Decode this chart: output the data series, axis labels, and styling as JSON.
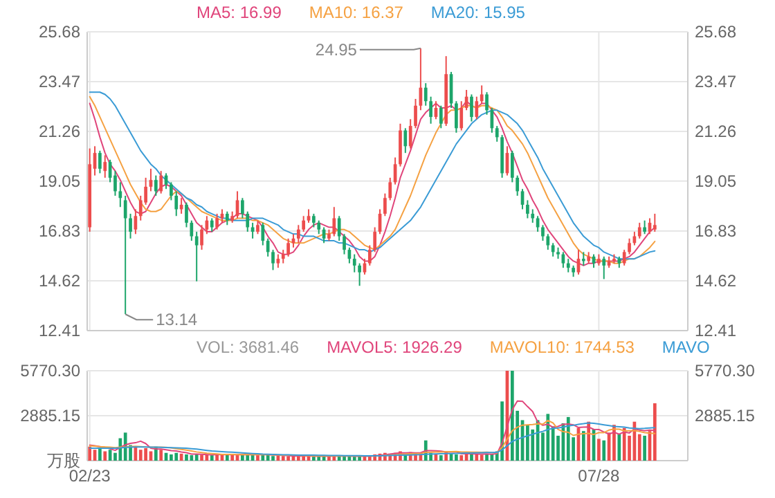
{
  "chart_data": [
    {
      "type": "candlestick",
      "categories": [
        null,
        null,
        null,
        null,
        null,
        null,
        null,
        null,
        null,
        null,
        null,
        null,
        null,
        null,
        null,
        null,
        null,
        null,
        null,
        null,
        null,
        null,
        null,
        null,
        null,
        null,
        null,
        null,
        null,
        null,
        null,
        null,
        null,
        null,
        null,
        null,
        null,
        null,
        null,
        null,
        null,
        null,
        null,
        null,
        null,
        null,
        null,
        null,
        null,
        null,
        null,
        null,
        null,
        null,
        null,
        null,
        null,
        null,
        null,
        null,
        null,
        null,
        null,
        null,
        null,
        null,
        null,
        null,
        null,
        null,
        null,
        null,
        null,
        null,
        null,
        null,
        null,
        null,
        null,
        null,
        null,
        null,
        null,
        null,
        null,
        null,
        null,
        null,
        null,
        null,
        null,
        null,
        null,
        null,
        null,
        null,
        null,
        null,
        null,
        null,
        null,
        null,
        null,
        null,
        null,
        null,
        null,
        null,
        null,
        null,
        null,
        null
      ],
      "ohlc": [
        [
          17.0,
          20.5,
          16.8,
          19.8
        ],
        [
          19.6,
          20.6,
          19.3,
          20.3
        ],
        [
          20.3,
          20.4,
          19.4,
          19.6
        ],
        [
          19.5,
          20.2,
          19.2,
          19.9
        ],
        [
          19.9,
          20.0,
          19.0,
          19.2
        ],
        [
          19.3,
          19.5,
          18.4,
          18.6
        ],
        [
          18.6,
          19.0,
          17.9,
          18.3
        ],
        [
          18.2,
          18.4,
          13.14,
          17.4
        ],
        [
          17.4,
          17.6,
          16.5,
          16.8
        ],
        [
          16.9,
          17.8,
          16.7,
          17.5
        ],
        [
          17.5,
          18.4,
          17.3,
          18.2
        ],
        [
          18.1,
          19.2,
          18.0,
          18.8
        ],
        [
          18.8,
          19.6,
          18.6,
          19.1
        ],
        [
          19.1,
          19.3,
          18.4,
          18.6
        ],
        [
          18.6,
          19.5,
          18.5,
          19.3
        ],
        [
          19.3,
          19.4,
          18.7,
          18.9
        ],
        [
          18.9,
          19.0,
          18.2,
          18.4
        ],
        [
          18.4,
          18.6,
          17.5,
          17.8
        ],
        [
          17.8,
          18.3,
          17.6,
          18.0
        ],
        [
          18.0,
          18.1,
          17.0,
          17.2
        ],
        [
          17.2,
          17.3,
          16.4,
          16.6
        ],
        [
          16.6,
          16.8,
          14.6,
          16.2
        ],
        [
          16.2,
          17.1,
          16.0,
          16.9
        ],
        [
          16.9,
          17.5,
          16.7,
          17.3
        ],
        [
          17.3,
          17.4,
          16.8,
          17.0
        ],
        [
          17.0,
          17.6,
          16.9,
          17.4
        ],
        [
          17.4,
          17.8,
          17.2,
          17.6
        ],
        [
          17.6,
          17.7,
          17.1,
          17.3
        ],
        [
          17.3,
          17.7,
          17.2,
          17.5
        ],
        [
          17.5,
          18.6,
          17.4,
          18.2
        ],
        [
          18.2,
          18.3,
          17.4,
          17.6
        ],
        [
          17.6,
          17.7,
          16.8,
          17.0
        ],
        [
          17.0,
          17.2,
          16.5,
          16.8
        ],
        [
          16.8,
          17.3,
          16.7,
          17.1
        ],
        [
          17.1,
          17.2,
          16.2,
          16.4
        ],
        [
          16.4,
          16.5,
          15.7,
          15.9
        ],
        [
          15.9,
          16.0,
          15.1,
          15.4
        ],
        [
          15.4,
          15.8,
          15.2,
          15.6
        ],
        [
          15.6,
          16.0,
          15.4,
          15.8
        ],
        [
          15.8,
          16.5,
          15.7,
          16.3
        ],
        [
          16.3,
          16.7,
          16.1,
          16.5
        ],
        [
          16.5,
          17.1,
          16.3,
          16.9
        ],
        [
          16.9,
          17.5,
          16.8,
          17.3
        ],
        [
          17.3,
          17.8,
          17.2,
          17.5
        ],
        [
          17.5,
          17.6,
          17.0,
          17.2
        ],
        [
          17.2,
          17.3,
          16.7,
          16.9
        ],
        [
          16.9,
          17.0,
          16.3,
          16.5
        ],
        [
          16.5,
          16.9,
          16.4,
          16.7
        ],
        [
          16.7,
          17.9,
          16.6,
          17.4
        ],
        [
          17.4,
          17.5,
          16.4,
          16.6
        ],
        [
          16.6,
          16.7,
          15.8,
          16.0
        ],
        [
          16.0,
          16.1,
          15.4,
          15.6
        ],
        [
          15.6,
          15.8,
          15.0,
          15.3
        ],
        [
          15.3,
          15.4,
          14.4,
          15.0
        ],
        [
          15.0,
          15.6,
          14.9,
          15.4
        ],
        [
          15.4,
          16.2,
          15.3,
          16.0
        ],
        [
          16.0,
          17.0,
          15.9,
          16.8
        ],
        [
          16.8,
          17.8,
          16.7,
          17.6
        ],
        [
          17.6,
          18.5,
          17.5,
          18.3
        ],
        [
          18.3,
          19.2,
          18.2,
          19.0
        ],
        [
          19.0,
          20.1,
          18.9,
          19.8
        ],
        [
          19.8,
          21.6,
          19.7,
          21.3
        ],
        [
          21.3,
          21.4,
          20.3,
          20.6
        ],
        [
          20.6,
          21.8,
          20.5,
          21.5
        ],
        [
          21.5,
          22.7,
          21.4,
          22.4
        ],
        [
          22.4,
          24.95,
          22.2,
          23.2
        ],
        [
          23.2,
          23.4,
          22.4,
          22.6
        ],
        [
          22.6,
          22.8,
          21.6,
          21.9
        ],
        [
          21.9,
          22.6,
          21.8,
          22.3
        ],
        [
          22.3,
          22.4,
          21.4,
          21.6
        ],
        [
          21.6,
          24.6,
          21.5,
          23.8
        ],
        [
          23.8,
          23.9,
          22.3,
          22.5
        ],
        [
          22.5,
          22.6,
          21.2,
          21.4
        ],
        [
          21.4,
          22.6,
          21.3,
          22.3
        ],
        [
          22.3,
          23.1,
          22.2,
          22.8
        ],
        [
          22.8,
          22.9,
          21.7,
          21.9
        ],
        [
          21.9,
          22.8,
          21.8,
          22.6
        ],
        [
          22.6,
          23.3,
          22.5,
          22.9
        ],
        [
          22.9,
          23.0,
          22.0,
          22.2
        ],
        [
          22.2,
          22.3,
          21.2,
          21.4
        ],
        [
          21.4,
          21.5,
          20.8,
          21.0
        ],
        [
          21.0,
          21.1,
          19.2,
          19.4
        ],
        [
          19.4,
          20.6,
          19.3,
          20.3
        ],
        [
          20.3,
          20.4,
          19.0,
          19.2
        ],
        [
          19.2,
          19.3,
          18.4,
          18.6
        ],
        [
          18.6,
          18.7,
          17.8,
          18.0
        ],
        [
          18.0,
          18.2,
          17.4,
          17.6
        ],
        [
          17.6,
          17.8,
          17.2,
          17.4
        ],
        [
          17.4,
          17.5,
          16.8,
          17.0
        ],
        [
          17.0,
          17.1,
          16.4,
          16.6
        ],
        [
          16.6,
          16.7,
          16.0,
          16.2
        ],
        [
          16.2,
          16.3,
          15.7,
          15.9
        ],
        [
          15.9,
          16.1,
          15.6,
          15.8
        ],
        [
          15.8,
          15.9,
          15.2,
          15.4
        ],
        [
          15.4,
          15.6,
          15.0,
          15.2
        ],
        [
          15.2,
          15.3,
          14.8,
          15.0
        ],
        [
          15.0,
          16.0,
          14.9,
          15.6
        ],
        [
          15.6,
          15.9,
          15.3,
          15.5
        ],
        [
          15.5,
          15.9,
          15.4,
          15.7
        ],
        [
          15.7,
          15.8,
          15.2,
          15.4
        ],
        [
          15.4,
          15.8,
          15.3,
          15.6
        ],
        [
          15.6,
          15.7,
          14.7,
          15.3
        ],
        [
          15.3,
          15.7,
          15.2,
          15.5
        ],
        [
          15.5,
          15.8,
          15.4,
          15.6
        ],
        [
          15.6,
          15.7,
          15.2,
          15.4
        ],
        [
          15.4,
          16.0,
          15.3,
          15.9
        ],
        [
          15.9,
          16.5,
          15.8,
          16.3
        ],
        [
          16.3,
          16.8,
          16.2,
          16.6
        ],
        [
          16.6,
          17.2,
          16.5,
          17.0
        ],
        [
          17.0,
          17.3,
          16.7,
          16.8
        ],
        [
          16.8,
          17.4,
          16.7,
          17.2
        ],
        [
          16.9,
          17.6,
          16.8,
          17.1
        ]
      ],
      "series": [
        {
          "name": "MA5: 16.99",
          "type": "line",
          "color": "#e0457b",
          "values": [
            22.5,
            21.8,
            21.0,
            20.3,
            19.8,
            19.5,
            19.1,
            18.6,
            18.1,
            17.7,
            17.6,
            17.7,
            18.1,
            18.5,
            18.8,
            18.9,
            18.8,
            18.6,
            18.4,
            18.0,
            17.6,
            17.2,
            17.0,
            16.8,
            16.8,
            17.0,
            17.2,
            17.3,
            17.4,
            17.6,
            17.6,
            17.5,
            17.4,
            17.3,
            17.0,
            16.6,
            16.3,
            15.9,
            15.8,
            15.8,
            15.9,
            16.2,
            16.6,
            16.9,
            17.1,
            17.2,
            17.1,
            17.0,
            17.0,
            16.8,
            16.6,
            16.4,
            16.1,
            15.7,
            15.5,
            15.5,
            15.7,
            16.2,
            16.8,
            17.5,
            18.3,
            19.2,
            19.8,
            20.4,
            21.1,
            21.8,
            22.1,
            22.3,
            22.5,
            22.3,
            22.3,
            22.4,
            22.2,
            22.3,
            22.6,
            22.4,
            22.3,
            22.5,
            22.5,
            22.2,
            21.9,
            21.4,
            20.8,
            20.3,
            19.7,
            19.1,
            18.7,
            18.2,
            17.8,
            17.3,
            16.9,
            16.6,
            16.3,
            16.0,
            15.7,
            15.5,
            15.4,
            15.3,
            15.4,
            15.4,
            15.5,
            15.5,
            15.5,
            15.5,
            15.5,
            15.6,
            15.7,
            15.9,
            16.2,
            16.5,
            16.8,
            16.99
          ]
        },
        {
          "name": "MA10: 16.37",
          "type": "line",
          "color": "#f5a142",
          "values": [
            22.8,
            22.4,
            21.9,
            21.4,
            20.9,
            20.4,
            19.9,
            19.4,
            18.9,
            18.5,
            18.1,
            17.8,
            17.7,
            17.7,
            17.8,
            18.1,
            18.4,
            18.6,
            18.5,
            18.3,
            18.1,
            17.9,
            17.7,
            17.6,
            17.5,
            17.4,
            17.3,
            17.3,
            17.3,
            17.4,
            17.4,
            17.4,
            17.3,
            17.3,
            17.2,
            17.1,
            16.9,
            16.7,
            16.5,
            16.4,
            16.3,
            16.3,
            16.3,
            16.4,
            16.5,
            16.6,
            16.7,
            16.7,
            16.8,
            16.9,
            16.9,
            16.8,
            16.6,
            16.4,
            16.2,
            16.1,
            16.0,
            16.2,
            16.4,
            16.6,
            16.9,
            17.4,
            17.9,
            18.4,
            19.0,
            19.6,
            20.2,
            20.7,
            21.2,
            21.6,
            22.0,
            22.2,
            22.2,
            22.3,
            22.4,
            22.4,
            22.3,
            22.4,
            22.4,
            22.3,
            22.2,
            21.9,
            21.5,
            21.3,
            21.0,
            20.7,
            20.3,
            19.8,
            19.3,
            18.8,
            18.3,
            17.9,
            17.5,
            17.1,
            16.7,
            16.3,
            16.0,
            15.8,
            15.7,
            15.6,
            15.5,
            15.5,
            15.5,
            15.4,
            15.4,
            15.5,
            15.6,
            15.6,
            15.7,
            15.9,
            16.1,
            16.37
          ]
        },
        {
          "name": "MA20: 15.95",
          "type": "line",
          "color": "#3a9bd5",
          "values": [
            23.0,
            23.0,
            23.0,
            22.9,
            22.7,
            22.4,
            22.0,
            21.6,
            21.2,
            20.8,
            20.4,
            20.1,
            19.8,
            19.6,
            19.3,
            19.1,
            18.9,
            18.7,
            18.5,
            18.3,
            18.2,
            18.0,
            17.9,
            17.7,
            17.6,
            17.5,
            17.4,
            17.4,
            17.3,
            17.3,
            17.3,
            17.3,
            17.4,
            17.4,
            17.4,
            17.3,
            17.2,
            17.1,
            16.9,
            16.8,
            16.7,
            16.7,
            16.6,
            16.6,
            16.6,
            16.5,
            16.4,
            16.4,
            16.4,
            16.3,
            16.3,
            16.2,
            16.1,
            16.0,
            16.0,
            15.9,
            16.0,
            16.1,
            16.3,
            16.5,
            16.7,
            16.9,
            17.1,
            17.3,
            17.6,
            17.9,
            18.3,
            18.7,
            19.1,
            19.5,
            19.9,
            20.3,
            20.7,
            21.0,
            21.3,
            21.6,
            21.8,
            22.0,
            22.1,
            22.2,
            22.2,
            22.1,
            22.0,
            21.8,
            21.6,
            21.3,
            20.9,
            20.5,
            20.1,
            19.6,
            19.2,
            18.8,
            18.4,
            18.0,
            17.6,
            17.2,
            16.9,
            16.6,
            16.4,
            16.2,
            16.1,
            15.9,
            15.8,
            15.7,
            15.6,
            15.6,
            15.6,
            15.6,
            15.7,
            15.8,
            15.9,
            15.95
          ]
        }
      ],
      "ylim": [
        12.41,
        25.68
      ],
      "yticks": [
        12.41,
        14.62,
        16.83,
        19.05,
        21.26,
        23.47,
        25.68
      ],
      "y2lim": [
        12.41,
        25.68
      ],
      "y2ticks": [
        12.41,
        14.62,
        16.83,
        19.05,
        21.26,
        23.47,
        25.68
      ],
      "grid": true,
      "legend": "top",
      "tick_labels": "y",
      "annotations": [
        "24.95",
        "13.14"
      ]
    },
    {
      "type": "bar",
      "categories": [
        "02/23",
        null,
        null,
        null,
        null,
        null,
        null,
        null,
        null,
        null,
        null,
        null,
        null,
        null,
        null,
        null,
        null,
        null,
        null,
        null,
        null,
        null,
        null,
        null,
        null,
        null,
        null,
        null,
        null,
        null,
        null,
        null,
        null,
        null,
        null,
        null,
        null,
        null,
        null,
        null,
        null,
        null,
        null,
        null,
        null,
        null,
        null,
        null,
        null,
        null,
        null,
        null,
        null,
        null,
        null,
        null,
        null,
        null,
        null,
        null,
        null,
        null,
        null,
        null,
        null,
        null,
        null,
        null,
        null,
        null,
        null,
        null,
        null,
        null,
        null,
        null,
        null,
        null,
        null,
        null,
        null,
        null,
        null,
        null,
        null,
        null,
        null,
        null,
        null,
        null,
        null,
        null,
        null,
        null,
        null,
        null,
        null,
        null,
        null,
        null,
        "07/28",
        null,
        null,
        null,
        null,
        null,
        null,
        null,
        null,
        null,
        null,
        null
      ],
      "values": [
        900,
        700,
        800,
        600,
        700,
        500,
        1440,
        1800,
        1000,
        900,
        700,
        800,
        600,
        900,
        700,
        500,
        400,
        500,
        450,
        400,
        350,
        400,
        380,
        420,
        350,
        400,
        380,
        420,
        400,
        360,
        400,
        380,
        420,
        350,
        400,
        380,
        300,
        320,
        300,
        280,
        300,
        280,
        320,
        300,
        260,
        280,
        300,
        280,
        320,
        300,
        280,
        300,
        260,
        300,
        280,
        300,
        400,
        450,
        500,
        450,
        500,
        600,
        400,
        550,
        450,
        500,
        1300,
        500,
        400,
        350,
        600,
        450,
        400,
        350,
        500,
        400,
        450,
        380,
        400,
        420,
        600,
        3800,
        5770.3,
        5770.3,
        3200,
        2600,
        2300,
        2000,
        2600,
        1800,
        3000,
        2200,
        1600,
        2400,
        2800,
        1500,
        2100,
        1900,
        2500,
        2000,
        1400,
        1300,
        1800,
        2300,
        1700,
        2100,
        1600,
        2500,
        1700,
        1600,
        1900,
        3681.46
      ],
      "colors": [
        "#ec4d4d",
        "#ec4d4d",
        "#1da56a",
        "#ec4d4d",
        "#1da56a",
        "#1da56a",
        "#1da56a",
        "#1da56a",
        "#1da56a",
        "#ec4d4d",
        "#ec4d4d",
        "#ec4d4d",
        "#ec4d4d",
        "#1da56a",
        "#ec4d4d",
        "#1da56a",
        "#1da56a",
        "#1da56a",
        "#ec4d4d",
        "#1da56a",
        "#1da56a",
        "#1da56a",
        "#ec4d4d",
        "#ec4d4d",
        "#1da56a",
        "#ec4d4d",
        "#ec4d4d",
        "#1da56a",
        "#ec4d4d",
        "#ec4d4d",
        "#1da56a",
        "#1da56a",
        "#1da56a",
        "#ec4d4d",
        "#1da56a",
        "#1da56a",
        "#1da56a",
        "#ec4d4d",
        "#ec4d4d",
        "#ec4d4d",
        "#ec4d4d",
        "#ec4d4d",
        "#ec4d4d",
        "#ec4d4d",
        "#1da56a",
        "#1da56a",
        "#1da56a",
        "#ec4d4d",
        "#ec4d4d",
        "#1da56a",
        "#1da56a",
        "#1da56a",
        "#1da56a",
        "#1da56a",
        "#ec4d4d",
        "#ec4d4d",
        "#ec4d4d",
        "#ec4d4d",
        "#ec4d4d",
        "#ec4d4d",
        "#ec4d4d",
        "#ec4d4d",
        "#1da56a",
        "#ec4d4d",
        "#ec4d4d",
        "#ec4d4d",
        "#1da56a",
        "#1da56a",
        "#ec4d4d",
        "#1da56a",
        "#ec4d4d",
        "#1da56a",
        "#1da56a",
        "#ec4d4d",
        "#ec4d4d",
        "#1da56a",
        "#ec4d4d",
        "#ec4d4d",
        "#1da56a",
        "#1da56a",
        "#1da56a",
        "#1da56a",
        "#ec4d4d",
        "#1da56a",
        "#1da56a",
        "#1da56a",
        "#1da56a",
        "#1da56a",
        "#1da56a",
        "#1da56a",
        "#1da56a",
        "#1da56a",
        "#1da56a",
        "#1da56a",
        "#1da56a",
        "#1da56a",
        "#ec4d4d",
        "#1da56a",
        "#ec4d4d",
        "#1da56a",
        "#ec4d4d",
        "#1da56a",
        "#ec4d4d",
        "#ec4d4d",
        "#1da56a",
        "#ec4d4d",
        "#ec4d4d",
        "#ec4d4d",
        "#ec4d4d",
        "#1da56a",
        "#ec4d4d",
        "#ec4d4d"
      ],
      "series": [
        {
          "name": "MAVOL5: 1926.29",
          "type": "line",
          "color": "#e0457b",
          "values": [
            1000,
            950,
            900,
            850,
            760,
            660,
            860,
            1010,
            1110,
            1150,
            1250,
            1100,
            800,
            740,
            740,
            700,
            640,
            620,
            550,
            510,
            420,
            420,
            410,
            390,
            380,
            390,
            390,
            390,
            390,
            390,
            390,
            390,
            390,
            390,
            390,
            390,
            370,
            350,
            340,
            320,
            300,
            300,
            300,
            300,
            290,
            290,
            290,
            290,
            300,
            300,
            300,
            300,
            290,
            290,
            290,
            290,
            310,
            340,
            380,
            420,
            470,
            500,
            500,
            510,
            500,
            510,
            640,
            640,
            630,
            610,
            550,
            550,
            560,
            440,
            460,
            440,
            420,
            420,
            430,
            410,
            450,
            1130,
            2200,
            3270,
            3830,
            3810,
            3470,
            3150,
            2480,
            2270,
            2340,
            2140,
            2200,
            2330,
            2350,
            2300,
            2130,
            2150,
            2160,
            2010,
            2000,
            1840,
            1710,
            1820,
            1700,
            1840,
            1780,
            2040,
            1960,
            1920,
            1960,
            1926.29
          ]
        },
        {
          "name": "MAVOL10: 1744.53",
          "type": "line",
          "color": "#f5a142",
          "values": [
            950,
            930,
            900,
            880,
            860,
            830,
            860,
            880,
            900,
            920,
            900,
            880,
            870,
            860,
            860,
            850,
            820,
            760,
            720,
            680,
            620,
            560,
            520,
            480,
            460,
            430,
            400,
            400,
            400,
            390,
            390,
            390,
            390,
            390,
            390,
            390,
            380,
            370,
            360,
            360,
            350,
            340,
            330,
            320,
            310,
            300,
            300,
            300,
            300,
            300,
            300,
            300,
            300,
            300,
            300,
            300,
            300,
            310,
            330,
            350,
            380,
            410,
            420,
            440,
            450,
            460,
            530,
            540,
            560,
            560,
            570,
            580,
            590,
            560,
            550,
            540,
            540,
            530,
            540,
            520,
            510,
            850,
            1380,
            1920,
            2150,
            2280,
            2300,
            2320,
            2360,
            2340,
            2580,
            2420,
            2000,
            1860,
            1820,
            1620,
            1700,
            1730,
            1750,
            1680,
            1800,
            1800,
            1960,
            2030,
            2020,
            1910,
            1920,
            1930,
            1870,
            1800,
            1760,
            1744.53
          ]
        },
        {
          "name": "MAVO",
          "type": "line",
          "color": "#3a9bd5",
          "values": [
            800,
            800,
            800,
            800,
            800,
            800,
            820,
            850,
            870,
            880,
            880,
            880,
            870,
            860,
            850,
            840,
            830,
            820,
            810,
            800,
            770,
            740,
            700,
            660,
            620,
            600,
            580,
            560,
            540,
            520,
            500,
            480,
            460,
            440,
            420,
            410,
            400,
            390,
            380,
            380,
            370,
            360,
            360,
            350,
            350,
            340,
            340,
            330,
            330,
            330,
            320,
            320,
            320,
            320,
            310,
            310,
            310,
            310,
            320,
            330,
            340,
            350,
            360,
            370,
            380,
            390,
            410,
            420,
            430,
            440,
            450,
            460,
            470,
            480,
            490,
            490,
            500,
            510,
            520,
            520,
            530,
            690,
            960,
            1230,
            1380,
            1490,
            1600,
            1690,
            1800,
            1880,
            2000,
            2070,
            2100,
            2150,
            2230,
            2270,
            2330,
            2370,
            2420,
            2400,
            2350,
            2300,
            2250,
            2200,
            2180,
            2150,
            2100,
            2080,
            2050,
            2070,
            2100,
            2120
          ]
        }
      ],
      "ylim": [
        0,
        5770.3
      ],
      "yticks": [
        {
          "value": 0,
          "label": "万股"
        },
        2885.15,
        {
          "value": 5770.3,
          "label": "5770.30"
        }
      ],
      "y2lim": [
        0,
        5770.3
      ],
      "y2ticks": [
        2885.15,
        {
          "value": 5770.3,
          "label": "5770.30"
        }
      ],
      "grid": true,
      "legend": "top",
      "annotations": [
        "VOL: 3681.46"
      ]
    }
  ]
}
